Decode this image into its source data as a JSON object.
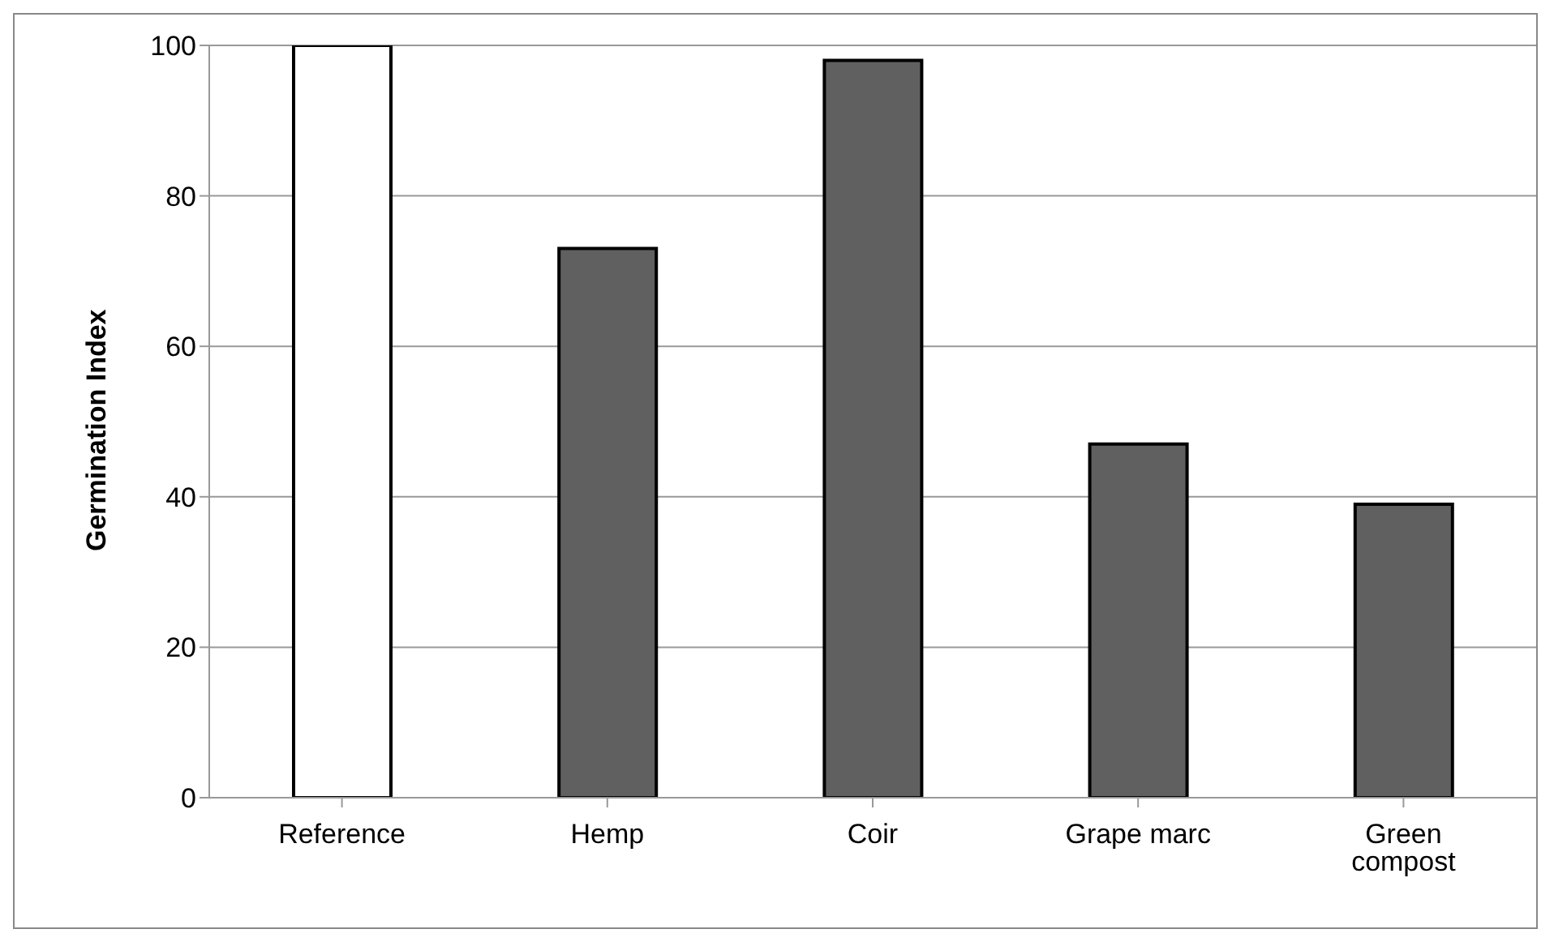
{
  "chart_data": {
    "type": "bar",
    "ylabel": "Germination Index",
    "categories": [
      "Reference",
      "Hemp",
      "Coir",
      "Grape marc",
      "Green compost"
    ],
    "values": [
      100,
      73,
      98,
      47,
      39
    ],
    "colors": [
      "#ffffff",
      "#606060",
      "#606060",
      "#606060",
      "#606060"
    ],
    "ylim": [
      0,
      100
    ],
    "yticks": [
      0,
      20,
      40,
      60,
      80,
      100
    ],
    "grid": "y",
    "legend": false
  }
}
